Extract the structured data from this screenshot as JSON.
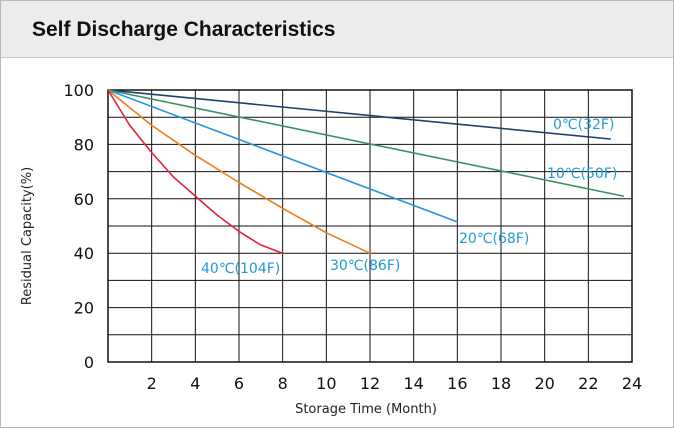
{
  "panel": {
    "title": "Self Discharge Characteristics"
  },
  "chart_data": {
    "type": "line",
    "xlabel": "Storage Time (Month)",
    "ylabel": "Residual Capacity(%)",
    "xlim": [
      0,
      24
    ],
    "ylim": [
      0,
      100
    ],
    "x_ticks": [
      "2",
      "4",
      "6",
      "8",
      "10",
      "12",
      "14",
      "16",
      "18",
      "20",
      "22",
      "24"
    ],
    "y_ticks": [
      "0",
      "20",
      "40",
      "60",
      "80",
      "100"
    ],
    "grid": true,
    "series": [
      {
        "name": "0℃(32F)",
        "color": "#1f3f6f",
        "points": [
          [
            0,
            100
          ],
          [
            23,
            82
          ]
        ]
      },
      {
        "name": "10℃(50F)",
        "color": "#3d8f66",
        "points": [
          [
            0,
            100
          ],
          [
            23.6,
            61
          ]
        ]
      },
      {
        "name": "20℃(68F)",
        "color": "#1f9ad6",
        "points": [
          [
            0,
            100
          ],
          [
            16,
            51.5
          ]
        ]
      },
      {
        "name": "30℃(86F)",
        "color": "#f07d1c",
        "points": [
          [
            0,
            100
          ],
          [
            2,
            87
          ],
          [
            4,
            76
          ],
          [
            6,
            66
          ],
          [
            8,
            56.5
          ],
          [
            10,
            47.5
          ],
          [
            12,
            40
          ]
        ]
      },
      {
        "name": "40℃(104F)",
        "color": "#e2233a",
        "points": [
          [
            0,
            100
          ],
          [
            1,
            87
          ],
          [
            2,
            77
          ],
          [
            3,
            68
          ],
          [
            4,
            61
          ],
          [
            5,
            54
          ],
          [
            6,
            48
          ],
          [
            7,
            43
          ],
          [
            8,
            40
          ]
        ]
      }
    ]
  }
}
